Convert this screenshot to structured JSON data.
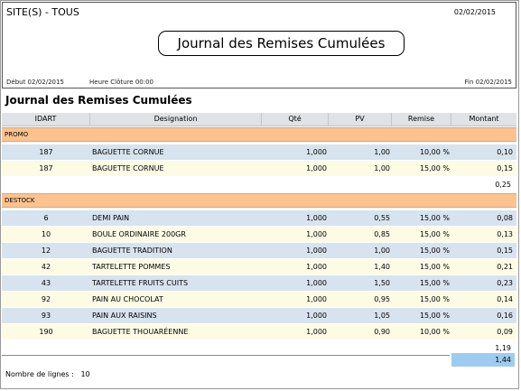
{
  "header": {
    "site": "SITE(S) - TOUS",
    "date": "02/02/2015",
    "title": "Journal des Remises Cumulées",
    "debut": "Début 02/02/2015",
    "cloture": "Heure Clôture 00:00",
    "fin": "Fin 02/02/2015"
  },
  "subtitle": "Journal des Remises Cumulées",
  "columns": {
    "idart": "IDART",
    "designation": "Designation",
    "qte": "Qté",
    "pv": "PV",
    "remise": "Remise",
    "montant": "Montant"
  },
  "groups": [
    {
      "name": "PROMO",
      "rows": [
        {
          "id": "187",
          "des": "BAGUETTE CORNUE",
          "qte": "1,000",
          "pv": "1,00",
          "rem": "10,00 %",
          "mt": "0,10"
        },
        {
          "id": "187",
          "des": "BAGUETTE CORNUE",
          "qte": "1,000",
          "pv": "1,00",
          "rem": "15,00 %",
          "mt": "0,15"
        }
      ],
      "subtotal": "0,25"
    },
    {
      "name": "DESTOCK",
      "rows": [
        {
          "id": "6",
          "des": "DEMI PAIN",
          "qte": "1,000",
          "pv": "0,55",
          "rem": "15,00 %",
          "mt": "0,08"
        },
        {
          "id": "10",
          "des": "BOULE ORDINAIRE 200GR",
          "qte": "1,000",
          "pv": "0,85",
          "rem": "15,00 %",
          "mt": "0,13"
        },
        {
          "id": "12",
          "des": "BAGUETTE TRADITION",
          "qte": "1,000",
          "pv": "1,00",
          "rem": "15,00 %",
          "mt": "0,15"
        },
        {
          "id": "42",
          "des": "TARTELETTE POMMES",
          "qte": "1,000",
          "pv": "1,40",
          "rem": "15,00 %",
          "mt": "0,21"
        },
        {
          "id": "43",
          "des": "TARTELETTE FRUITS CUITS",
          "qte": "1,000",
          "pv": "1,50",
          "rem": "15,00 %",
          "mt": "0,23"
        },
        {
          "id": "92",
          "des": "PAIN AU CHOCOLAT",
          "qte": "1,000",
          "pv": "0,95",
          "rem": "15,00 %",
          "mt": "0,14"
        },
        {
          "id": "93",
          "des": "PAIN AUX RAISINS",
          "qte": "1,000",
          "pv": "1,05",
          "rem": "15,00 %",
          "mt": "0,16"
        },
        {
          "id": "190",
          "des": "BAGUETTE THOUARÉENNE",
          "qte": "1,000",
          "pv": "0,90",
          "rem": "10,00 %",
          "mt": "0,09"
        }
      ],
      "subtotal": "1,19"
    }
  ],
  "total": "1,44",
  "footer": {
    "label": "Nombre de lignes :",
    "count": "10"
  }
}
